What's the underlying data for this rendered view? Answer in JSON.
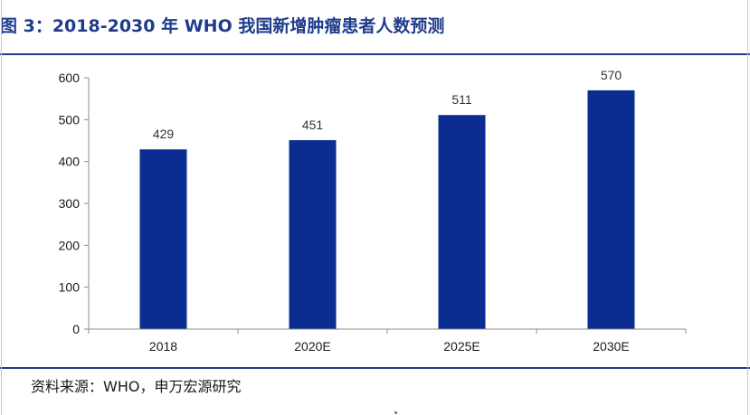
{
  "title": "图 3：2018-2030 年 WHO 我国新增肿瘤患者人数预测",
  "source": "资料来源：WHO，申万宏源研究",
  "colors": {
    "accent": "#1f3c8c",
    "bar": "#0b2d91"
  },
  "chart_data": {
    "type": "bar",
    "categories": [
      "2018",
      "2020E",
      "2025E",
      "2030E"
    ],
    "values": [
      429,
      451,
      511,
      570
    ],
    "data_labels": [
      "429",
      "451",
      "511",
      "570"
    ],
    "yticks": [
      "0",
      "100",
      "200",
      "300",
      "400",
      "500",
      "600"
    ],
    "ylim": [
      0,
      600
    ],
    "grid": false,
    "legend": "none"
  }
}
